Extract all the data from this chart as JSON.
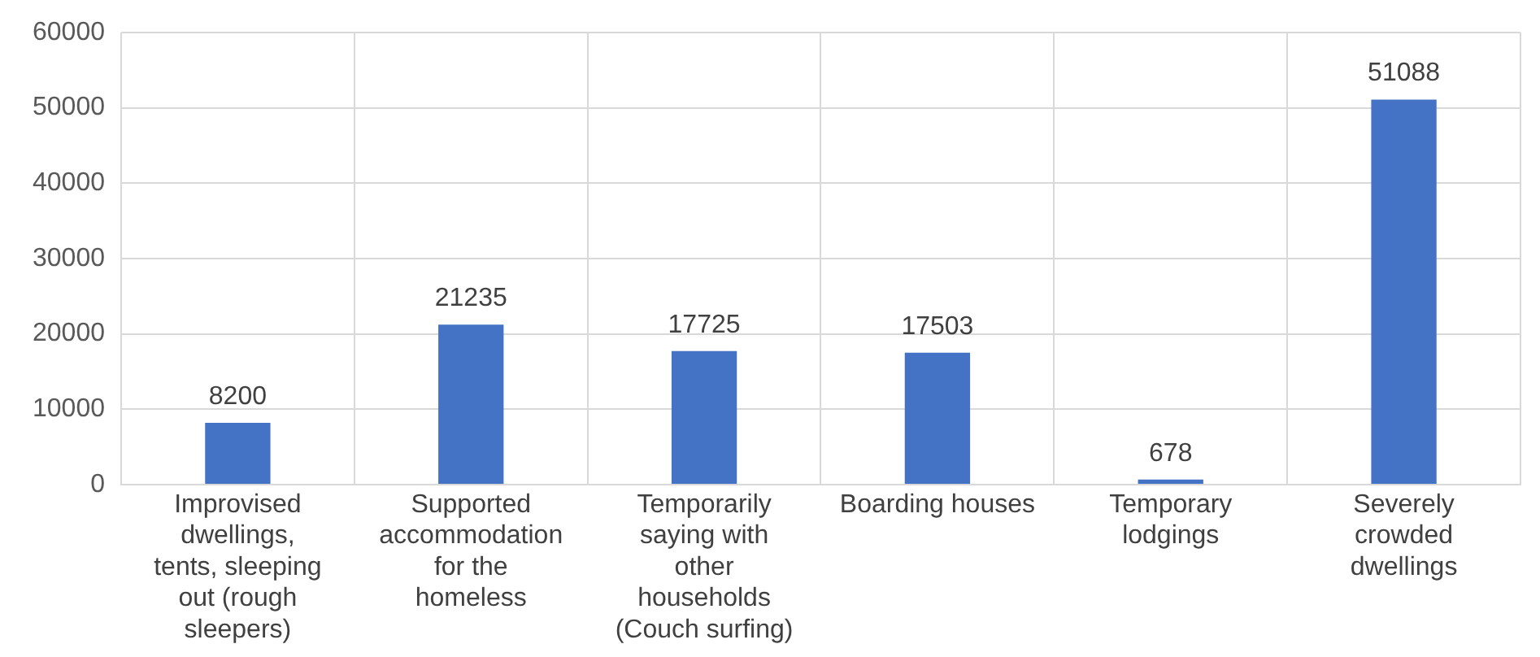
{
  "chart_data": {
    "type": "bar",
    "categories": [
      "Improvised dwellings, tents, sleeping out (rough sleepers)",
      "Supported accommodation for the homeless",
      "Temporarily saying with other households (Couch surfing)",
      "Boarding houses",
      "Temporary lodgings",
      "Severely crowded dwellings"
    ],
    "values": [
      8200,
      21235,
      17725,
      17503,
      678,
      51088
    ],
    "color": "#4472c4",
    "ylim": [
      0,
      60000
    ],
    "yticks": [
      0,
      10000,
      20000,
      30000,
      40000,
      50000,
      60000
    ],
    "grid": true,
    "data_labels": true,
    "legend": false
  }
}
